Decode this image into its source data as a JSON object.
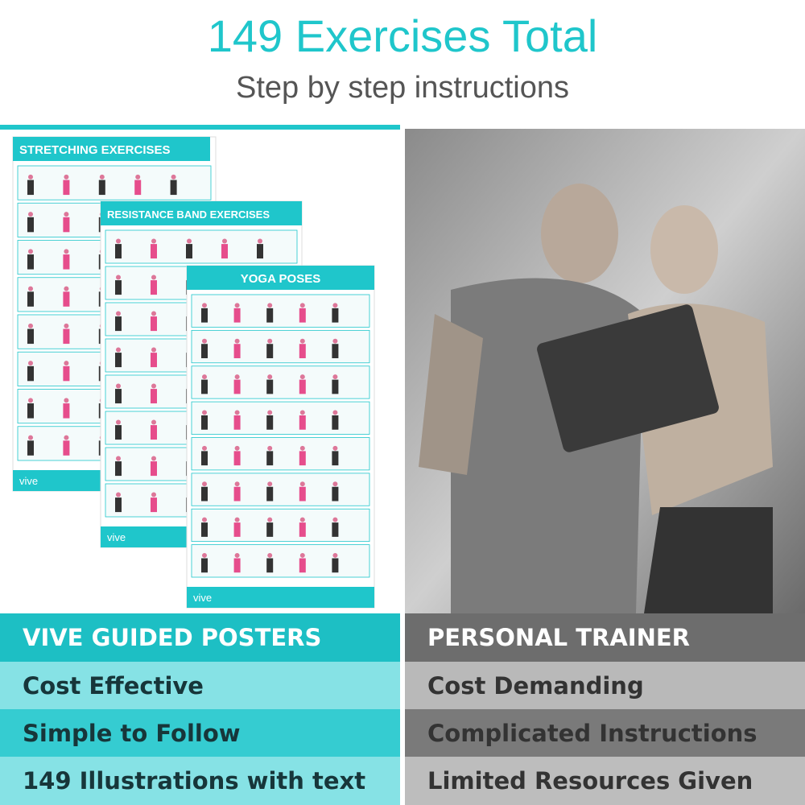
{
  "header": {
    "title": "149 Exercises Total",
    "subtitle": "Step by step instructions"
  },
  "posters": [
    {
      "title": "STRETCHING EXERCISES"
    },
    {
      "title": "RESISTANCE BAND EXERCISES"
    },
    {
      "title": "YOGA POSES"
    }
  ],
  "brand": "vive",
  "comparison": {
    "left": {
      "heading": "VIVE GUIDED POSTERS",
      "items": [
        "Cost Effective",
        "Simple to Follow",
        "149 Illustrations with text"
      ]
    },
    "right": {
      "heading": "PERSONAL TRAINER",
      "items": [
        "Cost Demanding",
        "Complicated Instructions",
        "Limited Resources Given"
      ]
    }
  }
}
